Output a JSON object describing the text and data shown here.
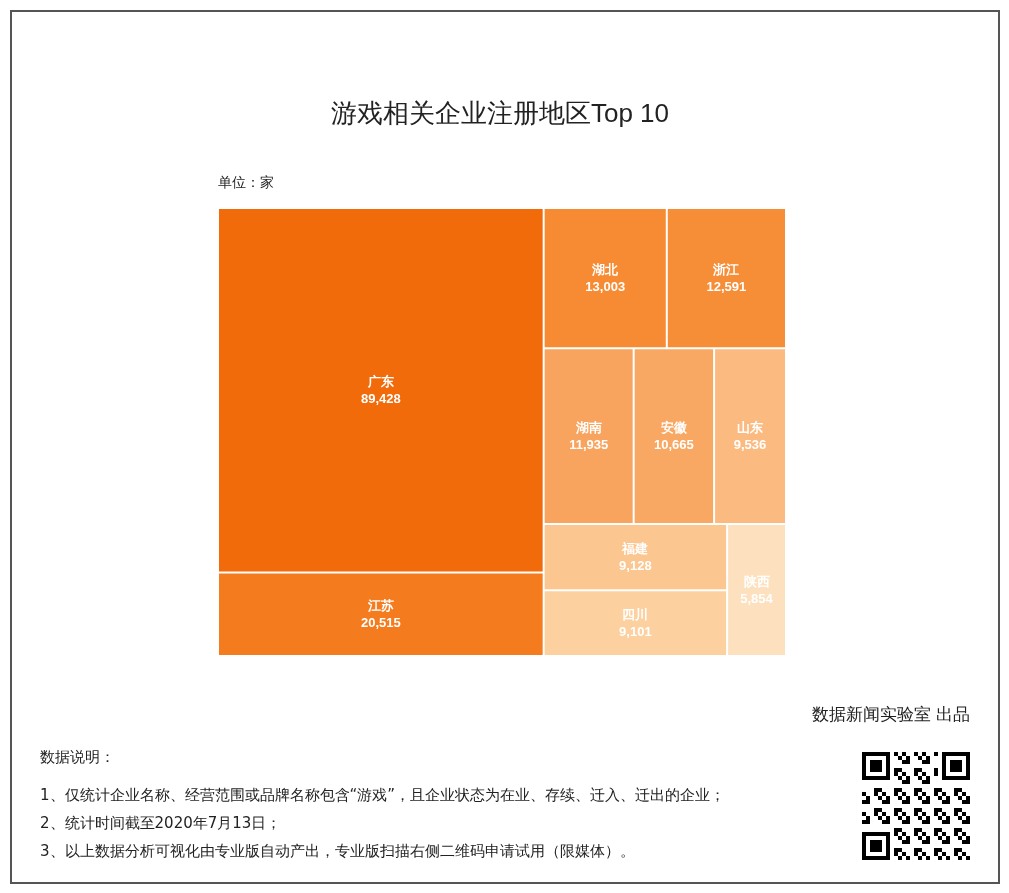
{
  "chart_data": {
    "type": "other",
    "title": "游戏相关企业注册地区Top 10",
    "subtitle": "单位：家",
    "categories": [
      "广东",
      "江苏",
      "湖北",
      "浙江",
      "湖南",
      "安徽",
      "山东",
      "福建",
      "四川",
      "陕西"
    ],
    "values": [
      89428,
      20515,
      13003,
      12591,
      11935,
      10665,
      9536,
      9128,
      9101,
      5854
    ],
    "value_labels": [
      "89,428",
      "20,515",
      "13,003",
      "12,591",
      "11,935",
      "10,665",
      "9,536",
      "9,128",
      "9,101",
      "5,854"
    ],
    "colors": [
      "#f26b0a",
      "#f47c1e",
      "#f68b33",
      "#f68e38",
      "#f8a45e",
      "#f8a862",
      "#fbbb80",
      "#fbc68f",
      "#fcd09f",
      "#fde0bd"
    ],
    "annotations": [
      "数据新闻实验室 出品",
      "数据说明：",
      "1、仅统计企业名称、经营范围或品牌名称包含“游戏”，且企业状态为在业、存续、迁入、迁出的企业；",
      "2、统计时间截至2020年7月13日；",
      "3、以上数据分析可视化由专业版自动产出，专业版扫描右侧二维码申请试用（限媒体）。"
    ]
  }
}
